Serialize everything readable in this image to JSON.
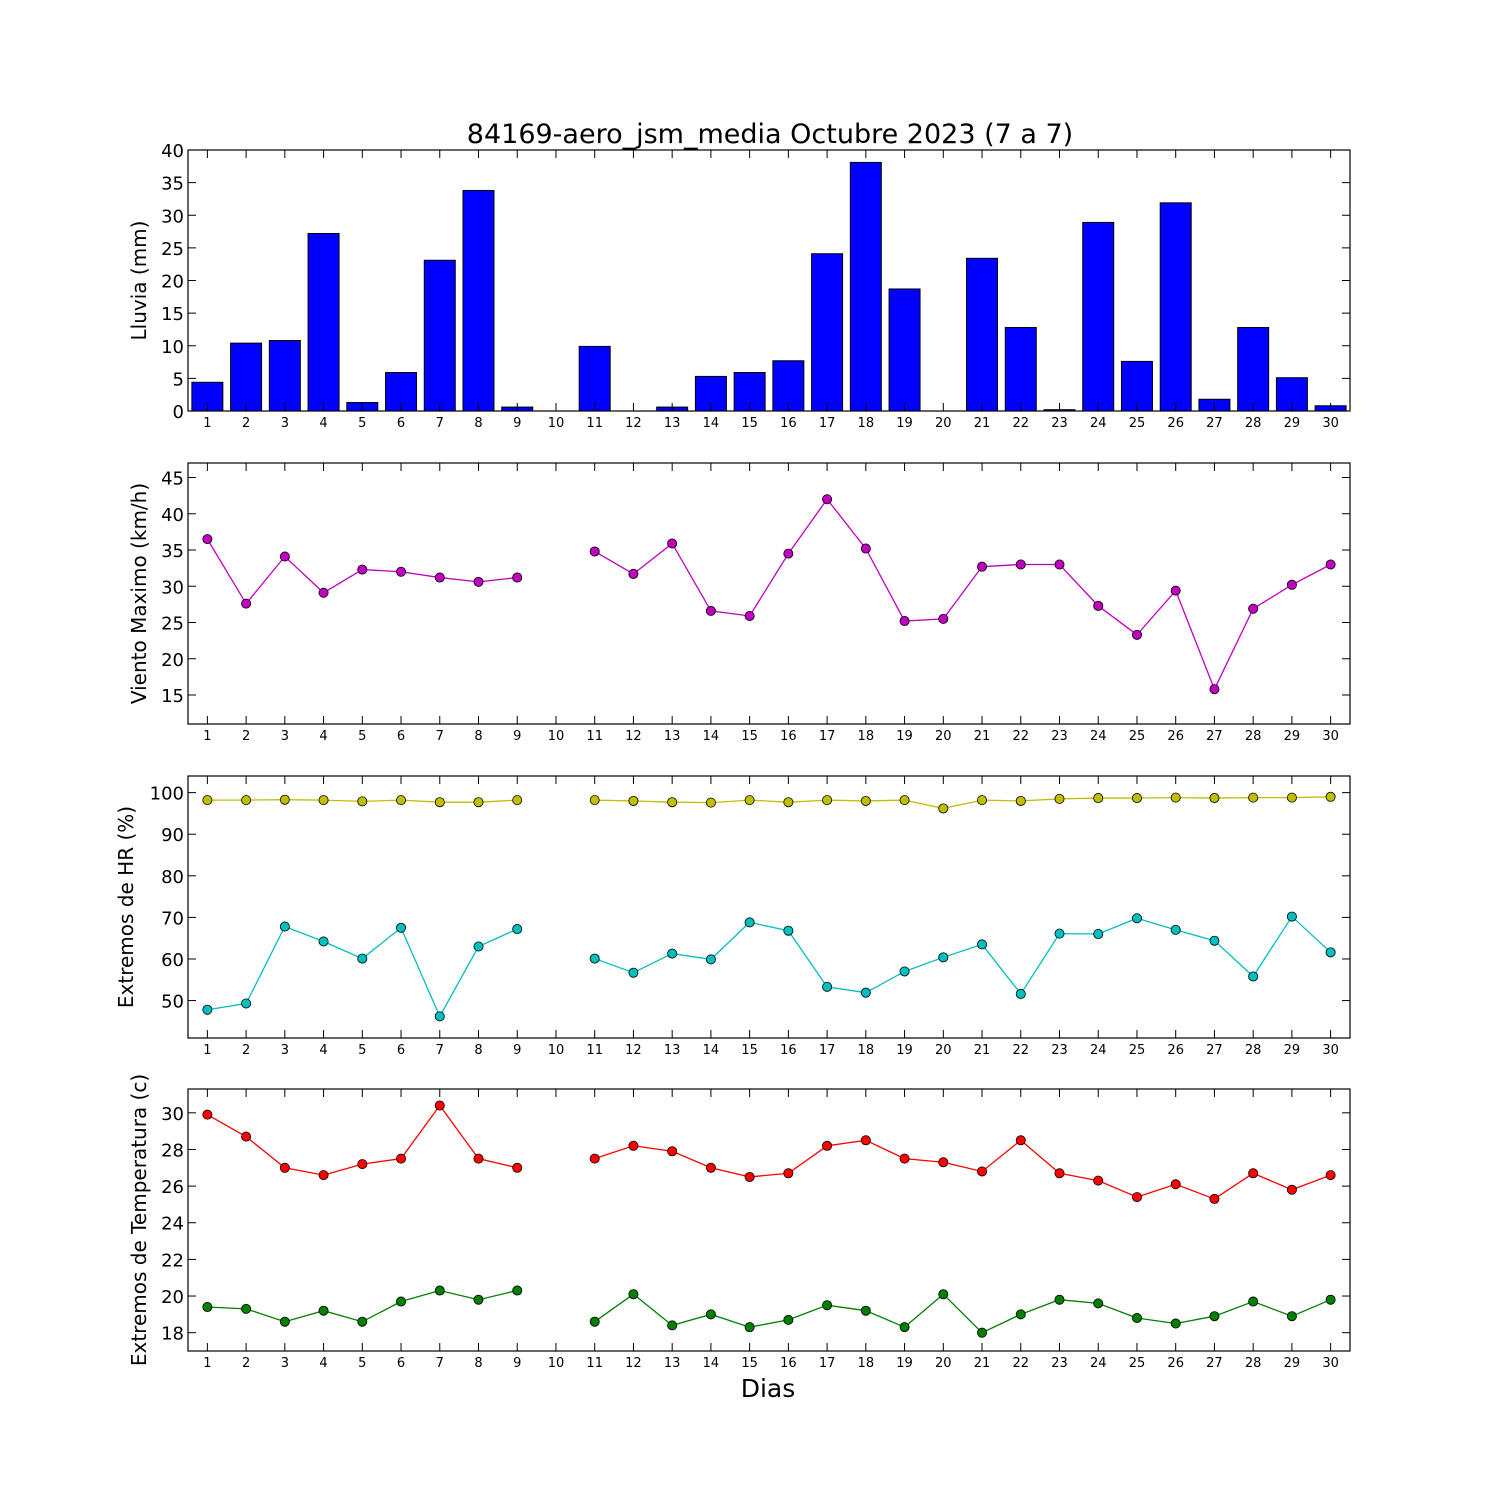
{
  "title": "84169-aero_jsm_media Octubre 2023  (7 a 7)",
  "xlabel": "Dias",
  "days": [
    1,
    2,
    3,
    4,
    5,
    6,
    7,
    8,
    9,
    10,
    11,
    12,
    13,
    14,
    15,
    16,
    17,
    18,
    19,
    20,
    21,
    22,
    23,
    24,
    25,
    26,
    27,
    28,
    29,
    30
  ],
  "chart_data": [
    {
      "type": "bar",
      "ylabel": "Lluvia (mm)",
      "ylim": [
        0,
        40
      ],
      "yticks": [
        0,
        5,
        10,
        15,
        20,
        25,
        30,
        35,
        40
      ],
      "categories": [
        1,
        2,
        3,
        4,
        5,
        6,
        7,
        8,
        9,
        10,
        11,
        12,
        13,
        14,
        15,
        16,
        17,
        18,
        19,
        20,
        21,
        22,
        23,
        24,
        25,
        26,
        27,
        28,
        29,
        30
      ],
      "series": [
        {
          "color": "#0000ff",
          "values": [
            4.4,
            10.4,
            10.8,
            27.2,
            1.3,
            5.9,
            23.1,
            33.8,
            0.6,
            0,
            9.9,
            0,
            0.6,
            5.3,
            5.9,
            7.7,
            24.1,
            38.1,
            18.7,
            0,
            23.4,
            12.8,
            0.2,
            28.9,
            7.6,
            31.9,
            1.8,
            12.8,
            5.1,
            0.8
          ]
        }
      ]
    },
    {
      "type": "line",
      "ylabel": "Viento Maximo (km/h)",
      "ylim": [
        11,
        47
      ],
      "yticks": [
        15,
        20,
        25,
        30,
        35,
        40,
        45
      ],
      "x": [
        1,
        2,
        3,
        4,
        5,
        6,
        7,
        8,
        9,
        10,
        11,
        12,
        13,
        14,
        15,
        16,
        17,
        18,
        19,
        20,
        21,
        22,
        23,
        24,
        25,
        26,
        27,
        28,
        29,
        30
      ],
      "series": [
        {
          "color": "#bf00bf",
          "values": [
            36.5,
            27.6,
            34.1,
            29.1,
            32.3,
            32.0,
            31.2,
            30.6,
            31.2,
            null,
            34.8,
            31.7,
            35.9,
            26.6,
            25.9,
            34.5,
            42.0,
            35.2,
            25.2,
            25.5,
            32.7,
            33.0,
            33.0,
            27.3,
            23.3,
            29.4,
            15.8,
            26.9,
            30.2,
            33.0
          ]
        }
      ]
    },
    {
      "type": "line",
      "ylabel": "Extremos de HR (%)",
      "ylim": [
        41,
        104
      ],
      "yticks": [
        50,
        60,
        70,
        80,
        90,
        100
      ],
      "x": [
        1,
        2,
        3,
        4,
        5,
        6,
        7,
        8,
        9,
        10,
        11,
        12,
        13,
        14,
        15,
        16,
        17,
        18,
        19,
        20,
        21,
        22,
        23,
        24,
        25,
        26,
        27,
        28,
        29,
        30
      ],
      "series": [
        {
          "color": "#bfbf00",
          "values": [
            98.2,
            98.2,
            98.3,
            98.2,
            97.9,
            98.2,
            97.7,
            97.7,
            98.2,
            null,
            98.2,
            98.0,
            97.7,
            97.6,
            98.2,
            97.7,
            98.2,
            98.0,
            98.2,
            96.2,
            98.2,
            98.0,
            98.5,
            98.7,
            98.7,
            98.8,
            98.7,
            98.8,
            98.8,
            99.0
          ]
        },
        {
          "color": "#00bfbf",
          "values": [
            47.8,
            49.3,
            67.8,
            64.2,
            60.1,
            67.5,
            46.2,
            63.0,
            67.2,
            null,
            60.1,
            56.7,
            61.3,
            59.9,
            68.8,
            66.8,
            53.3,
            51.9,
            57.0,
            60.4,
            63.5,
            51.6,
            66.1,
            66.0,
            69.8,
            67.0,
            64.4,
            55.8,
            70.2,
            61.6
          ]
        }
      ]
    },
    {
      "type": "line",
      "ylabel": "Extremos de Temperatura (c)",
      "ylim": [
        17,
        31.3
      ],
      "yticks": [
        18,
        20,
        22,
        24,
        26,
        28,
        30
      ],
      "x": [
        1,
        2,
        3,
        4,
        5,
        6,
        7,
        8,
        9,
        10,
        11,
        12,
        13,
        14,
        15,
        16,
        17,
        18,
        19,
        20,
        21,
        22,
        23,
        24,
        25,
        26,
        27,
        28,
        29,
        30
      ],
      "series": [
        {
          "color": "#ff0000",
          "values": [
            29.9,
            28.7,
            27.0,
            26.6,
            27.2,
            27.5,
            30.4,
            27.5,
            27.0,
            null,
            27.5,
            28.2,
            27.9,
            27.0,
            26.5,
            26.7,
            28.2,
            28.5,
            27.5,
            27.3,
            26.8,
            28.5,
            26.7,
            26.3,
            25.4,
            26.1,
            25.3,
            26.7,
            25.8,
            26.6
          ]
        },
        {
          "color": "#007f00",
          "values": [
            19.4,
            19.3,
            18.6,
            19.2,
            18.6,
            19.7,
            20.3,
            19.8,
            20.3,
            null,
            18.6,
            20.1,
            18.4,
            19.0,
            18.3,
            18.7,
            19.5,
            19.2,
            18.3,
            20.1,
            18.0,
            19.0,
            19.8,
            19.6,
            18.8,
            18.5,
            18.9,
            19.7,
            18.9,
            19.8
          ]
        }
      ]
    }
  ]
}
